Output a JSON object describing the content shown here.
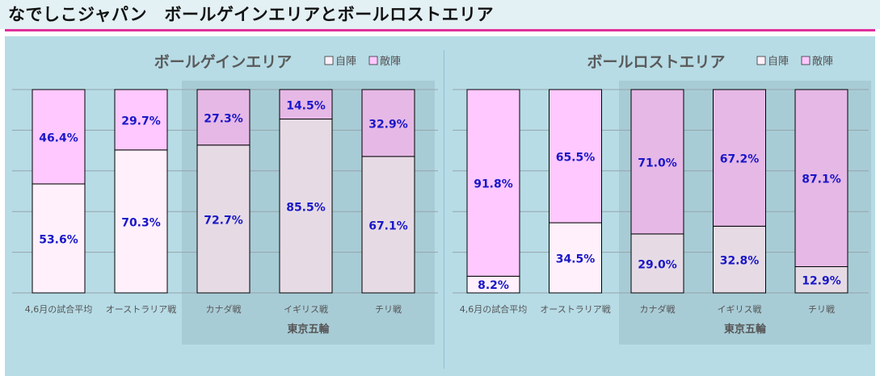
{
  "page_title": "なでしこジャパン　ボールゲインエリアとボールロストエリア",
  "colors": {
    "own_half": "#fff0fb",
    "opponent_half": "#ffc8ff",
    "own_half_highlighted": "#e6dbe5",
    "opponent_half_highlighted": "#e6b8e6",
    "highlight_box": "#a8ccd6",
    "value_label": "#1a17c8",
    "title_rule": "#e0309c"
  },
  "chart_data": [
    {
      "type": "bar",
      "stacked": true,
      "title": "ボールゲインエリア",
      "categories": [
        "4,6月の試合平均",
        "オーストラリア戦",
        "カナダ戦",
        "イギリス戦",
        "チリ戦"
      ],
      "group_label": "東京五輪",
      "grouped_categories": [
        "カナダ戦",
        "イギリス戦",
        "チリ戦"
      ],
      "series": [
        {
          "name": "自陣",
          "values": [
            53.6,
            70.3,
            72.7,
            85.5,
            67.1
          ],
          "labels": [
            "53.6%",
            "70.3%",
            "72.7%",
            "85.5%",
            "67.1%"
          ]
        },
        {
          "name": "敵陣",
          "values": [
            46.4,
            29.7,
            27.3,
            14.5,
            32.9
          ],
          "labels": [
            "46.4%",
            "29.7%",
            "27.3%",
            "14.5%",
            "32.9%"
          ]
        }
      ],
      "ylim": [
        0,
        100
      ],
      "grid": true,
      "legend_position": "top-right"
    },
    {
      "type": "bar",
      "stacked": true,
      "title": "ボールロストエリア",
      "categories": [
        "4,6月の試合平均",
        "オーストラリア戦",
        "カナダ戦",
        "イギリス戦",
        "チリ戦"
      ],
      "group_label": "東京五輪",
      "grouped_categories": [
        "カナダ戦",
        "イギリス戦",
        "チリ戦"
      ],
      "series": [
        {
          "name": "自陣",
          "values": [
            8.2,
            34.5,
            29.0,
            32.8,
            12.9
          ],
          "labels": [
            "8.2%",
            "34.5%",
            "29.0%",
            "32.8%",
            "12.9%"
          ]
        },
        {
          "name": "敵陣",
          "values": [
            91.8,
            65.5,
            71.0,
            67.2,
            87.1
          ],
          "labels": [
            "91.8%",
            "65.5%",
            "71.0%",
            "67.2%",
            "87.1%"
          ]
        }
      ],
      "ylim": [
        0,
        100
      ],
      "grid": true,
      "legend_position": "top-right"
    }
  ]
}
